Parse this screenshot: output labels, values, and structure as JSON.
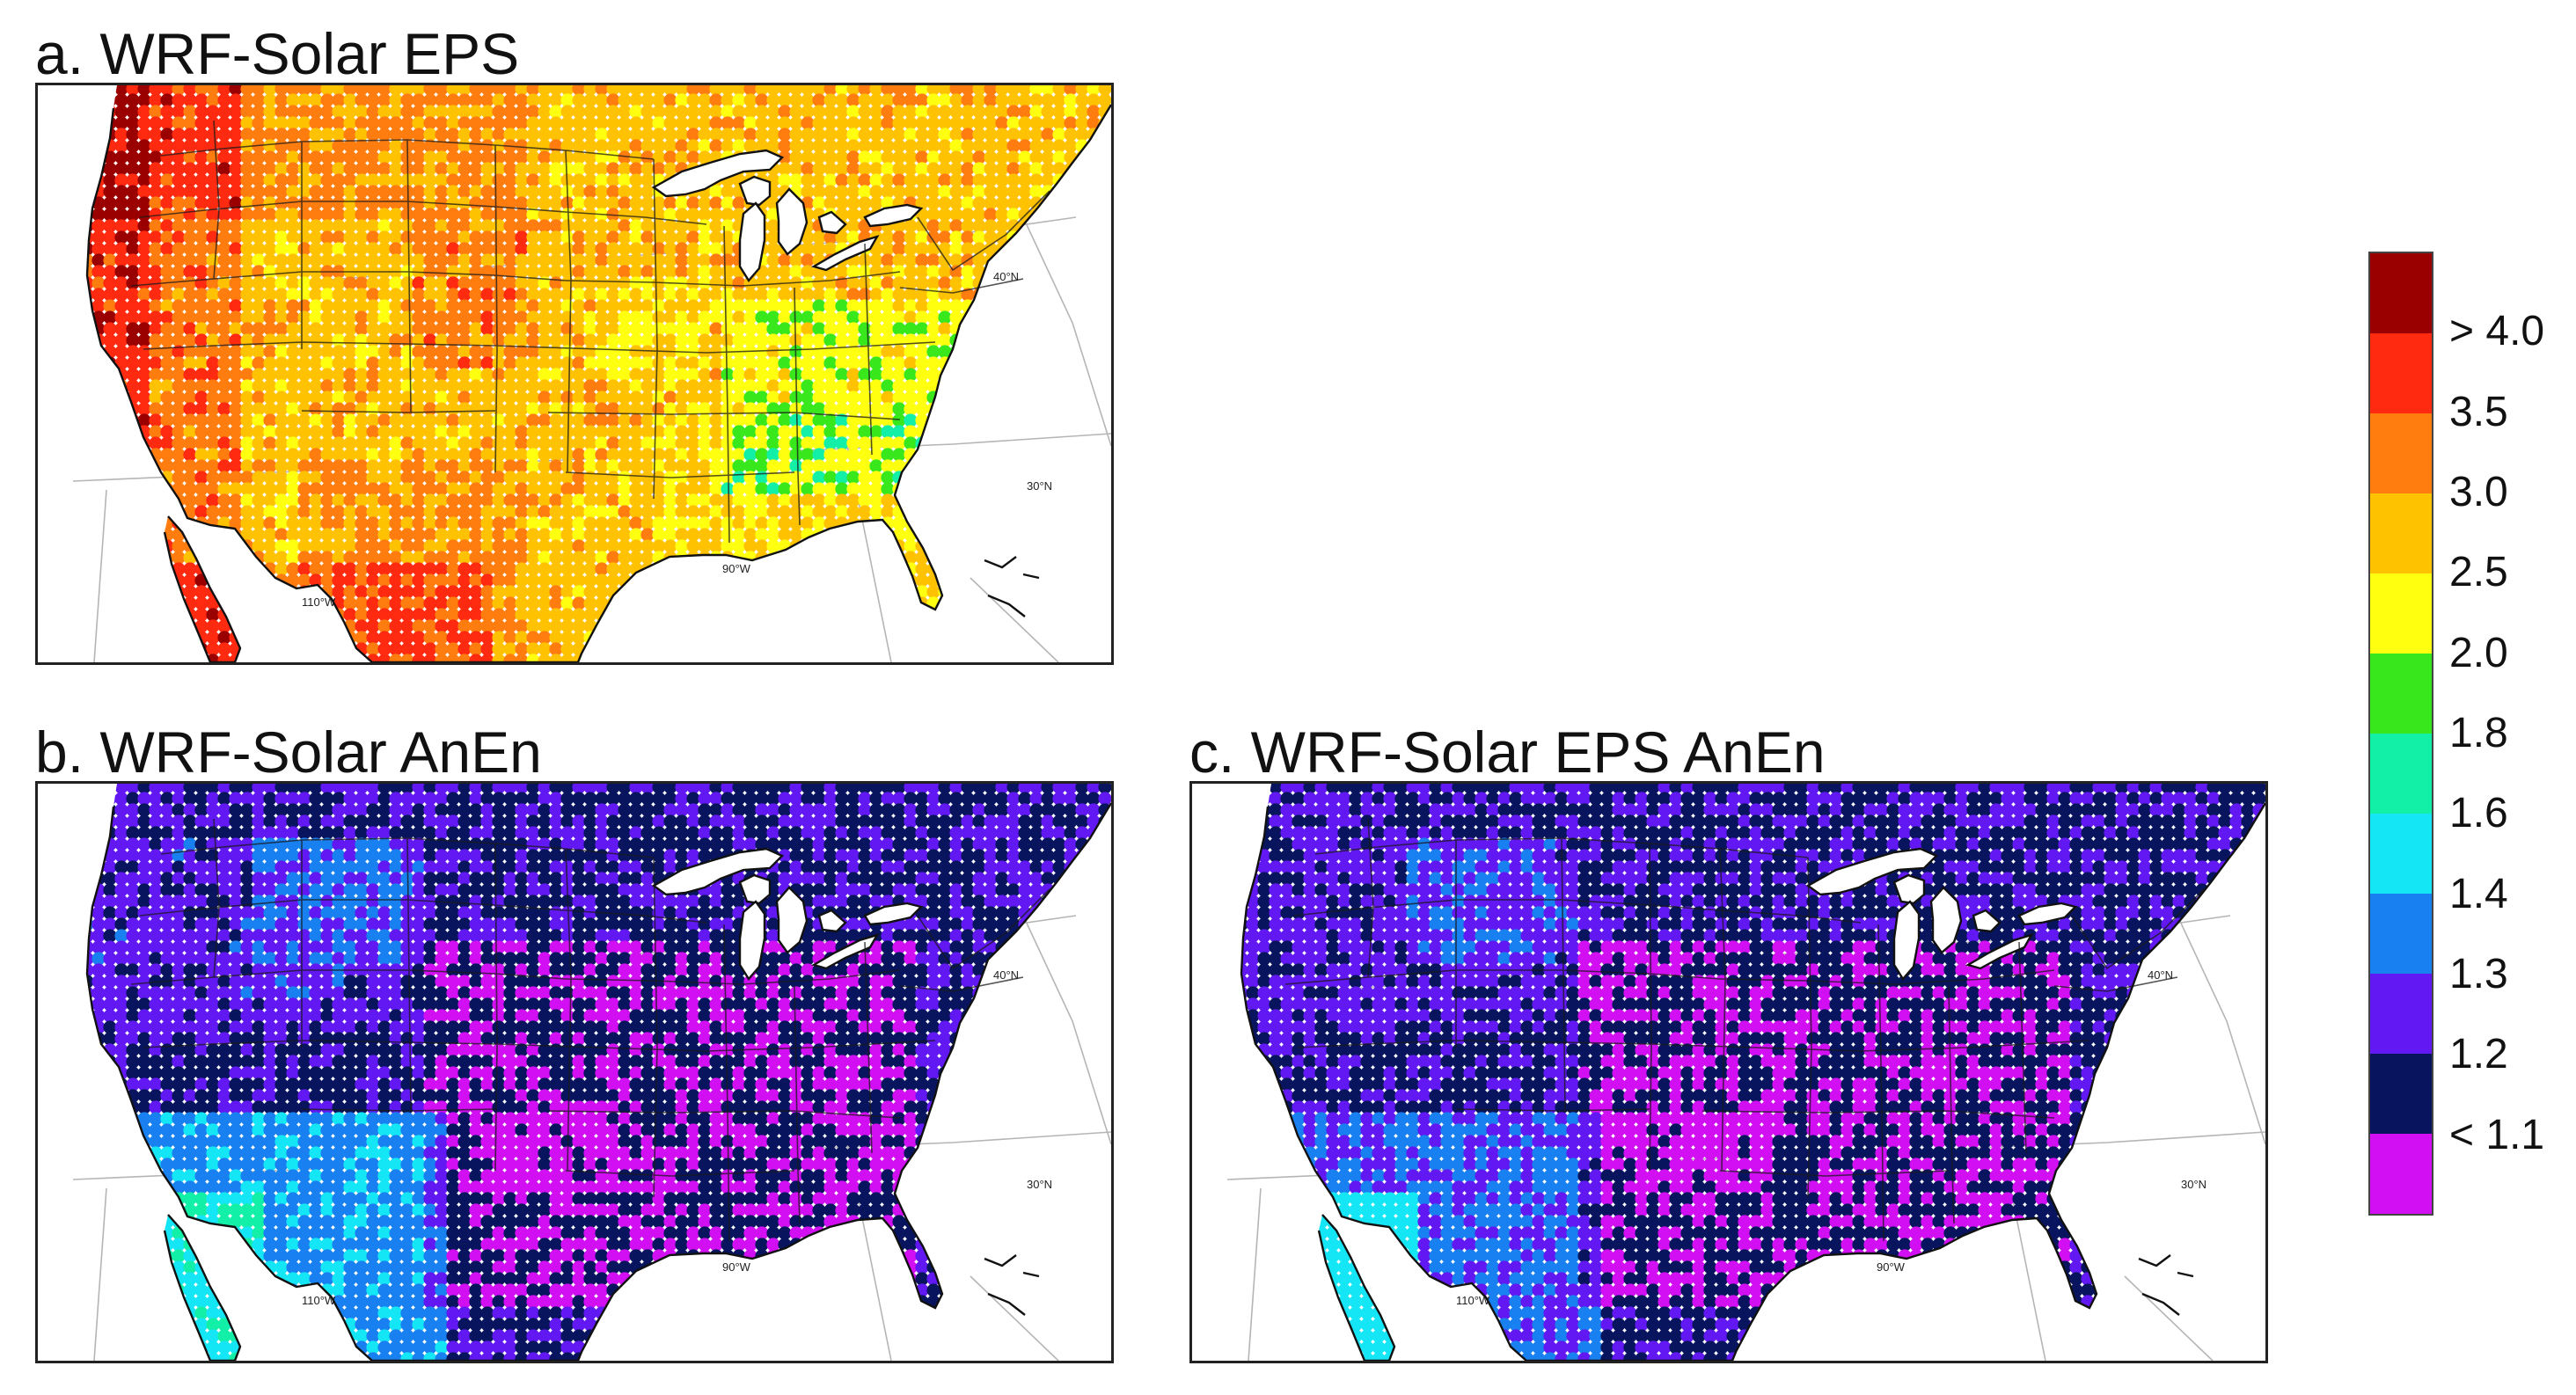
{
  "panels": [
    {
      "id": "a",
      "title": "a. WRF-Solar EPS",
      "scheme": "eps"
    },
    {
      "id": "b",
      "title": "b. WRF-Solar AnEn",
      "scheme": "anen"
    },
    {
      "id": "c",
      "title": "c. WRF-Solar EPS AnEn",
      "scheme": "epsanen"
    }
  ],
  "map_labels": {
    "lat_40": "40°N",
    "lat_30": "30°N",
    "lon_90": "90°W",
    "lon_110": "110°W"
  },
  "colorbar": {
    "colors_top_to_bottom": [
      "#9a0000",
      "#ff2a10",
      "#ff7d0f",
      "#ffc200",
      "#ffff10",
      "#39e81c",
      "#12f0a8",
      "#14e6f5",
      "#1880f0",
      "#6218f2",
      "#08155e",
      "#d20ef2"
    ],
    "labels": [
      "> 4.0",
      "3.5",
      "3.0",
      "2.5",
      "2.0",
      "1.8",
      "1.6",
      "1.4",
      "1.3",
      "1.2",
      "< 1.1"
    ]
  }
}
